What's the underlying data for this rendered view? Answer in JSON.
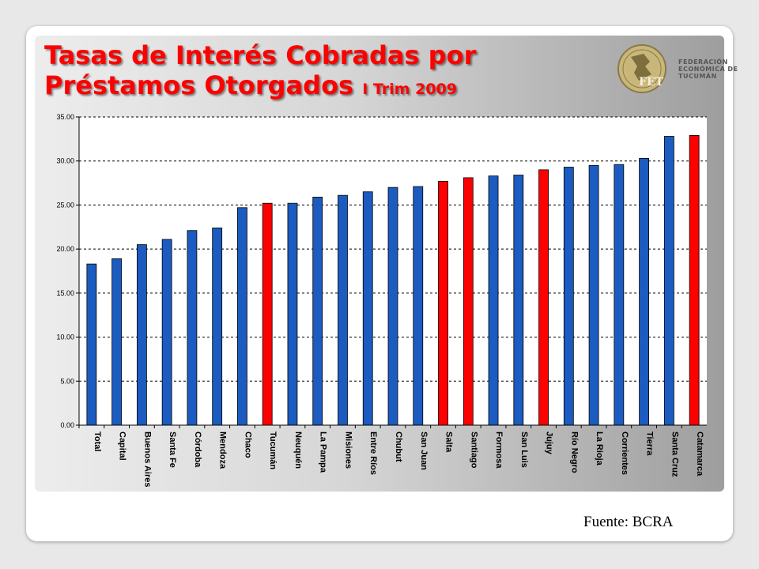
{
  "title": {
    "line1": "Tasas de Interés Cobradas por",
    "line2": "Préstamos Otorgados",
    "subtitle": "I Trim 2009"
  },
  "logo": {
    "name": "FET",
    "line1": "FEDERACIÓN",
    "line2": "ECONÓMICA DE",
    "line3": "TUCUMÁN"
  },
  "source": "Fuente: BCRA",
  "colors": {
    "highlight": "#ff0000",
    "default": "#1c5bbf"
  },
  "chart_data": {
    "type": "bar",
    "categories": [
      "Total",
      "Capital",
      "Buenos Aires",
      "Santa Fe",
      "Córdoba",
      "Mendoza",
      "Chaco",
      "Tucumán",
      "Neuquén",
      "La Pampa",
      "Misiones",
      "Entre Ríos",
      "Chubut",
      "San Juan",
      "Salta",
      "Santiago",
      "Formosa",
      "San Luis",
      "Jujuy",
      "Río Negro",
      "La Rioja",
      "Corrientes",
      "Tierra",
      "Santa Cruz",
      "Catamarca"
    ],
    "values": [
      18.3,
      18.9,
      20.5,
      21.1,
      22.1,
      22.4,
      24.7,
      25.2,
      25.2,
      25.9,
      26.1,
      26.5,
      27.0,
      27.1,
      27.7,
      28.1,
      28.3,
      28.4,
      29.0,
      29.3,
      29.5,
      29.6,
      30.3,
      32.8,
      32.9
    ],
    "highlighted": [
      "Tucumán",
      "Salta",
      "Santiago",
      "Jujuy",
      "Catamarca"
    ],
    "yticks": [
      "0.00",
      "5.00",
      "10.00",
      "15.00",
      "20.00",
      "25.00",
      "30.00",
      "35.00"
    ],
    "ylim": [
      0,
      35
    ],
    "grid": true
  }
}
